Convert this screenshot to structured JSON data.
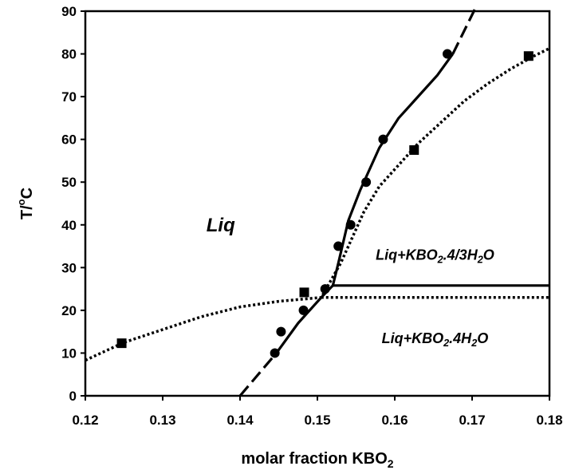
{
  "chart_data": {
    "type": "scatter",
    "xlabel": "molar fraction KBO",
    "xlabel_sub": "2",
    "ylabel": "T/",
    "ylabel_sup": "o",
    "ylabel_tail": "C",
    "xlim": [
      0.12,
      0.18
    ],
    "ylim": [
      0,
      90
    ],
    "xticks": [
      "0.12",
      "0.13",
      "0.14",
      "0.15",
      "0.16",
      "0.17",
      "0.18"
    ],
    "yticks": [
      "0",
      "10",
      "20",
      "30",
      "40",
      "50",
      "60",
      "70",
      "80",
      "90"
    ],
    "grid": false,
    "series": [
      {
        "marker": "circle",
        "points": [
          [
            0.1445,
            10
          ],
          [
            0.1453,
            15
          ],
          [
            0.1482,
            20
          ],
          [
            0.151,
            25
          ],
          [
            0.1527,
            35
          ],
          [
            0.1543,
            40
          ],
          [
            0.1563,
            50
          ],
          [
            0.1585,
            60
          ],
          [
            0.1668,
            80
          ]
        ]
      },
      {
        "marker": "square",
        "points": [
          [
            0.1247,
            12.3
          ],
          [
            0.1483,
            24.2
          ],
          [
            0.1625,
            57.5
          ],
          [
            0.1773,
            79.5
          ]
        ]
      }
    ],
    "curves": [
      {
        "style": "dashed",
        "points": [
          [
            0.14,
            0
          ],
          [
            0.1447,
            10
          ]
        ]
      },
      {
        "style": "solid",
        "points": [
          [
            0.1447,
            10
          ],
          [
            0.1475,
            17
          ],
          [
            0.1505,
            23
          ],
          [
            0.152,
            25.8
          ],
          [
            0.1527,
            31
          ],
          [
            0.154,
            41
          ],
          [
            0.1555,
            48
          ],
          [
            0.158,
            58
          ],
          [
            0.1605,
            65
          ],
          [
            0.1625,
            69
          ],
          [
            0.1655,
            75
          ],
          [
            0.1675,
            80
          ]
        ]
      },
      {
        "style": "dashed",
        "points": [
          [
            0.1675,
            80
          ],
          [
            0.1705,
            91
          ]
        ]
      },
      {
        "style": "dotted",
        "points": [
          [
            0.12,
            8.3
          ],
          [
            0.125,
            12.5
          ],
          [
            0.13,
            15.5
          ],
          [
            0.135,
            18.5
          ],
          [
            0.14,
            20.8
          ],
          [
            0.145,
            22.1
          ],
          [
            0.1505,
            23
          ],
          [
            0.153,
            31
          ],
          [
            0.1545,
            37
          ],
          [
            0.156,
            43
          ],
          [
            0.158,
            49
          ],
          [
            0.1605,
            54
          ],
          [
            0.163,
            59
          ],
          [
            0.166,
            64
          ],
          [
            0.169,
            69
          ],
          [
            0.172,
            73
          ],
          [
            0.175,
            76.5
          ],
          [
            0.178,
            79.5
          ],
          [
            0.18,
            81.3
          ]
        ]
      },
      {
        "style": "solid",
        "points": [
          [
            0.152,
            25.8
          ],
          [
            0.18,
            25.8
          ]
        ]
      },
      {
        "style": "dotted",
        "points": [
          [
            0.1505,
            23
          ],
          [
            0.18,
            23
          ]
        ]
      }
    ],
    "annotations": [
      {
        "text": "Liq",
        "x": 0.1375,
        "y": 40,
        "size": "large"
      },
      {
        "text": "Liq+KBO",
        "sub": "2",
        "tail": ".4/3H",
        "sub2": "2",
        "tail2": "O",
        "x": 0.1652,
        "y": 33,
        "size": "medium"
      },
      {
        "text": "Liq+KBO",
        "sub": "2",
        "tail": ".4H",
        "sub2": "2",
        "tail2": "O",
        "x": 0.1652,
        "y": 13.5,
        "size": "medium"
      }
    ]
  }
}
